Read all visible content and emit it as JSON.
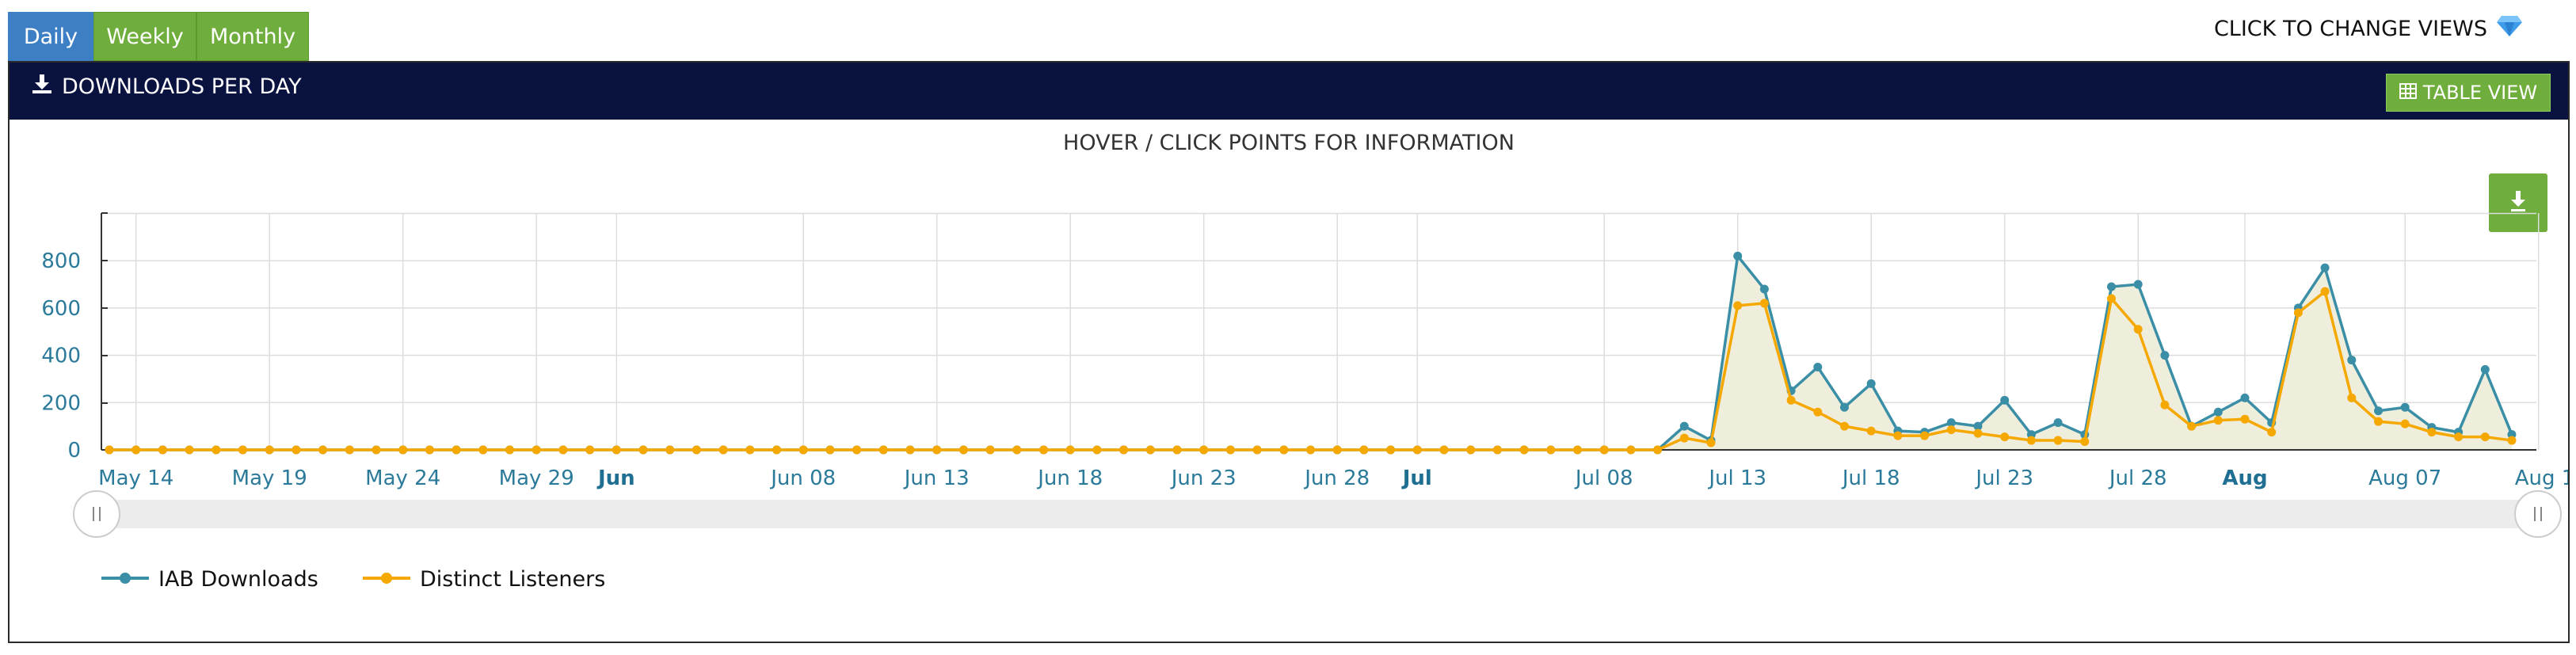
{
  "tabs": {
    "daily": "Daily",
    "weekly": "Weekly",
    "monthly": "Monthly"
  },
  "change_views_label": "CLICK TO CHANGE VIEWS",
  "panel": {
    "title": "DOWNLOADS PER DAY",
    "table_view_label": "TABLE VIEW"
  },
  "hint": "HOVER / CLICK POINTS FOR INFORMATION",
  "icons": {
    "download": "download-icon",
    "table": "table-icon",
    "gem": "gem-icon",
    "export": "export-download-icon"
  },
  "colors": {
    "tab_active": "#3d7fc4",
    "tab_inactive": "#6fae3c",
    "header_bg": "#0a1240",
    "series_downloads": "#3a8ea6",
    "series_listeners": "#f5a800",
    "area_fill": "#efeddc",
    "axis_text": "#2b7a9a"
  },
  "chart_data": {
    "type": "line",
    "title": "",
    "xlabel": "",
    "ylabel": "",
    "ylim": [
      0,
      1000
    ],
    "yticks": [
      0,
      200,
      400,
      600,
      800
    ],
    "x_start": "May 13",
    "x_ticks": [
      {
        "label": "May 14",
        "index": 1,
        "bold": false
      },
      {
        "label": "May 19",
        "index": 6,
        "bold": false
      },
      {
        "label": "May 24",
        "index": 11,
        "bold": false
      },
      {
        "label": "May 29",
        "index": 16,
        "bold": false
      },
      {
        "label": "Jun",
        "index": 19,
        "bold": true
      },
      {
        "label": "Jun 08",
        "index": 26,
        "bold": false
      },
      {
        "label": "Jun 13",
        "index": 31,
        "bold": false
      },
      {
        "label": "Jun 18",
        "index": 36,
        "bold": false
      },
      {
        "label": "Jun 23",
        "index": 41,
        "bold": false
      },
      {
        "label": "Jun 28",
        "index": 46,
        "bold": false
      },
      {
        "label": "Jul",
        "index": 49,
        "bold": true
      },
      {
        "label": "Jul 08",
        "index": 56,
        "bold": false
      },
      {
        "label": "Jul 13",
        "index": 61,
        "bold": false
      },
      {
        "label": "Jul 18",
        "index": 66,
        "bold": false
      },
      {
        "label": "Jul 23",
        "index": 71,
        "bold": false
      },
      {
        "label": "Jul 28",
        "index": 76,
        "bold": false
      },
      {
        "label": "Aug",
        "index": 80,
        "bold": true
      },
      {
        "label": "Aug 07",
        "index": 86,
        "bold": false
      },
      {
        "label": "Aug 1",
        "index": 91,
        "bold": false
      }
    ],
    "series": [
      {
        "name": "IAB Downloads",
        "color": "#3a8ea6",
        "values": [
          0,
          0,
          0,
          0,
          0,
          0,
          0,
          0,
          0,
          0,
          0,
          0,
          0,
          0,
          0,
          0,
          0,
          0,
          0,
          0,
          0,
          0,
          0,
          0,
          0,
          0,
          0,
          0,
          0,
          0,
          0,
          0,
          0,
          0,
          0,
          0,
          0,
          0,
          0,
          0,
          0,
          0,
          0,
          0,
          0,
          0,
          0,
          0,
          0,
          0,
          0,
          0,
          0,
          0,
          0,
          0,
          0,
          0,
          0,
          100,
          40,
          820,
          680,
          250,
          350,
          180,
          280,
          80,
          75,
          115,
          100,
          210,
          65,
          115,
          65,
          690,
          700,
          400,
          100,
          160,
          220,
          115,
          600,
          770,
          380,
          165,
          180,
          95,
          75,
          340,
          65
        ]
      },
      {
        "name": "Distinct Listeners",
        "color": "#f5a800",
        "values": [
          0,
          0,
          0,
          0,
          0,
          0,
          0,
          0,
          0,
          0,
          0,
          0,
          0,
          0,
          0,
          0,
          0,
          0,
          0,
          0,
          0,
          0,
          0,
          0,
          0,
          0,
          0,
          0,
          0,
          0,
          0,
          0,
          0,
          0,
          0,
          0,
          0,
          0,
          0,
          0,
          0,
          0,
          0,
          0,
          0,
          0,
          0,
          0,
          0,
          0,
          0,
          0,
          0,
          0,
          0,
          0,
          0,
          0,
          0,
          50,
          30,
          610,
          620,
          210,
          160,
          100,
          80,
          60,
          60,
          85,
          70,
          55,
          40,
          40,
          35,
          640,
          510,
          190,
          100,
          125,
          130,
          75,
          580,
          670,
          220,
          120,
          110,
          75,
          55,
          55,
          40
        ]
      }
    ],
    "legend": {
      "placement": "bottom-left",
      "entries": [
        "IAB Downloads",
        "Distinct Listeners"
      ]
    },
    "grid": true
  }
}
